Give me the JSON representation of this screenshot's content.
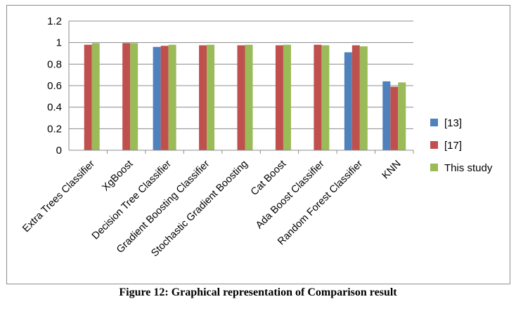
{
  "caption": "Figure 12: Graphical representation of Comparison result",
  "chart_data": {
    "type": "bar",
    "title": "",
    "xlabel": "",
    "ylabel": "",
    "ylim": [
      0,
      1.2
    ],
    "yticks": [
      0,
      0.2,
      0.4,
      0.6,
      0.8,
      1,
      1.2
    ],
    "grid": true,
    "legend": "right",
    "categories": [
      "Extra Trees Classifier",
      "XgBoost",
      "Decision Tree Classifier",
      "Gradient Boosting Classifier",
      "Stochastic Gradient Boosting",
      "Cat Boost",
      "Ada Boost Classifier",
      "Random Forest Classifier",
      "KNN"
    ],
    "series": [
      {
        "name": "[13]",
        "color": "#4f81bd",
        "values": [
          null,
          null,
          0.96,
          null,
          null,
          null,
          null,
          0.91,
          0.64
        ]
      },
      {
        "name": "[17]",
        "color": "#c0504d",
        "values": [
          0.98,
          0.995,
          0.97,
          0.975,
          0.975,
          0.975,
          0.98,
          0.975,
          0.59
        ]
      },
      {
        "name": "This study",
        "color": "#9bbb59",
        "values": [
          0.995,
          0.995,
          0.98,
          0.98,
          0.98,
          0.98,
          0.975,
          0.965,
          0.63
        ]
      }
    ]
  }
}
